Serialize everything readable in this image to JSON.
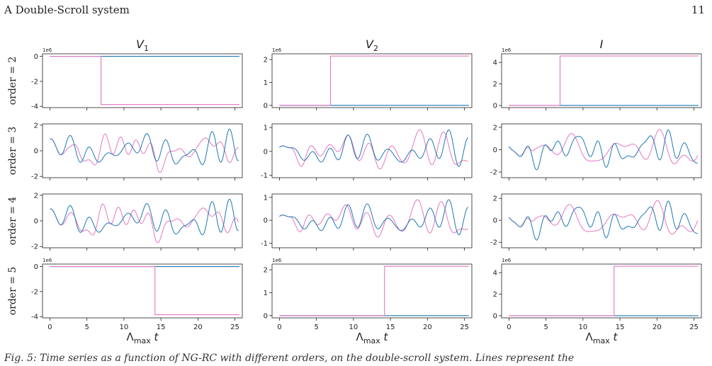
{
  "header": {
    "section": "A   Double-Scroll system",
    "page_number": "11"
  },
  "caption": "Fig. 5: Time series as a function of NG-RC with different orders, on the double-scroll system. Lines represent the",
  "colors": {
    "truth": "#1f77b4",
    "prediction": "#e377c2"
  },
  "chart_data": {
    "type": "line",
    "columns": [
      {
        "title": "V_1",
        "title_base": "V",
        "title_sub": "1"
      },
      {
        "title": "V_2",
        "title_base": "V",
        "title_sub": "2"
      },
      {
        "title": "I",
        "title_base": "I",
        "title_sub": ""
      }
    ],
    "xlabel": {
      "base": "Λ",
      "sub": "max",
      "var": "t"
    },
    "xlim": [
      -1,
      26
    ],
    "xticks": [
      0,
      5,
      10,
      15,
      20,
      25
    ],
    "series_names": [
      "",
      ""
    ],
    "rows": [
      {
        "label": "order = 2",
        "kind": "blowup",
        "panels": [
          {
            "multiplier": "1e6",
            "ylim": [
              -4.1,
              0.2
            ],
            "yticks": [
              0,
              -2,
              -4
            ],
            "truth_level": 0.0,
            "jump_at": 6.9,
            "pre": 0.0,
            "post": -3.85
          },
          {
            "multiplier": "1e6",
            "ylim": [
              -0.1,
              2.25
            ],
            "yticks": [
              0,
              1,
              2
            ],
            "truth_level": 0.0,
            "jump_at": 6.9,
            "pre": 0.0,
            "post": 2.15
          },
          {
            "multiplier": "1e6",
            "ylim": [
              -0.2,
              4.8
            ],
            "yticks": [
              0,
              2,
              4
            ],
            "truth_level": 0.0,
            "jump_at": 6.9,
            "pre": 0.0,
            "post": 4.6
          }
        ]
      },
      {
        "label": "order = 3",
        "kind": "chaotic",
        "panels": [
          {
            "multiplier": "",
            "ylim": [
              -2.1,
              2.1
            ],
            "yticks": [
              -2,
              0,
              2
            ],
            "amp": 1.7,
            "seed": 1,
            "phase_shift": 1.3
          },
          {
            "multiplier": "",
            "ylim": [
              -1.1,
              1.15
            ],
            "yticks": [
              -1,
              0,
              1
            ],
            "amp": 0.9,
            "seed": 2,
            "phase_shift": 0.9
          },
          {
            "multiplier": "",
            "ylim": [
              -2.5,
              2.3
            ],
            "yticks": [
              -2,
              0,
              2
            ],
            "amp": 1.8,
            "seed": 3,
            "phase_shift": 1.1
          }
        ]
      },
      {
        "label": "order = 4",
        "kind": "chaotic",
        "panels": [
          {
            "multiplier": "",
            "ylim": [
              -2.1,
              2.1
            ],
            "yticks": [
              -2,
              0,
              2
            ],
            "amp": 1.7,
            "seed": 1,
            "phase_shift": 1.6
          },
          {
            "multiplier": "",
            "ylim": [
              -1.2,
              1.15
            ],
            "yticks": [
              -1,
              0,
              1
            ],
            "amp": 0.9,
            "seed": 2,
            "phase_shift": 1.2
          },
          {
            "multiplier": "",
            "ylim": [
              -2.5,
              2.4
            ],
            "yticks": [
              -2,
              0,
              2
            ],
            "amp": 1.8,
            "seed": 3,
            "phase_shift": 1.4
          }
        ]
      },
      {
        "label": "order = 5",
        "kind": "blowup",
        "panels": [
          {
            "multiplier": "1e6",
            "ylim": [
              -4.1,
              0.2
            ],
            "yticks": [
              0,
              -2,
              -4
            ],
            "truth_level": 0.0,
            "jump_at": 14.2,
            "pre": 0.0,
            "post": -3.85
          },
          {
            "multiplier": "1e6",
            "ylim": [
              -0.1,
              2.25
            ],
            "yticks": [
              0,
              1,
              2
            ],
            "truth_level": 0.0,
            "jump_at": 14.2,
            "pre": 0.0,
            "post": 2.15
          },
          {
            "multiplier": "1e6",
            "ylim": [
              -0.2,
              4.8
            ],
            "yticks": [
              0,
              2,
              4
            ],
            "truth_level": 0.0,
            "jump_at": 14.2,
            "pre": 0.0,
            "post": 4.6
          }
        ]
      }
    ]
  }
}
